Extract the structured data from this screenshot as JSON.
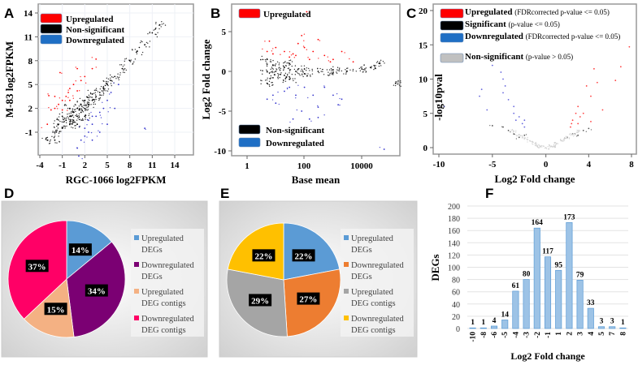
{
  "panels": {
    "a": "A",
    "b": "B",
    "c": "C",
    "d": "D",
    "e": "E",
    "f": "F"
  },
  "chart_data": [
    {
      "panel": "A",
      "type": "scatter",
      "xlabel": "RGC-1066 log2FPKM",
      "ylabel": "M-83 log2FPKM",
      "xlim": [
        -4.2,
        16.5
      ],
      "ylim": [
        -4.5,
        15
      ],
      "xticks": [
        -4,
        -1,
        2,
        5,
        8,
        11,
        14
      ],
      "yticks": [
        -1,
        2,
        5,
        8,
        11,
        14
      ],
      "grid": true,
      "legend_placement": "top-left",
      "series": [
        {
          "name": "Upregulated",
          "color": "#ff0000",
          "points": [
            [
              -3,
              0
            ],
            [
              -2.5,
              1.8
            ],
            [
              -2,
              2
            ],
            [
              -1.5,
              2.5
            ],
            [
              -1,
              3
            ],
            [
              -0.5,
              3.5
            ],
            [
              0,
              3
            ],
            [
              0,
              4.5
            ],
            [
              0.5,
              5
            ],
            [
              1,
              4.2
            ],
            [
              1.5,
              5.5
            ],
            [
              2,
              6
            ],
            [
              -2,
              3.5
            ],
            [
              -1.3,
              6.5
            ],
            [
              -0.2,
              4
            ],
            [
              1,
              7
            ],
            [
              3,
              7
            ],
            [
              3.5,
              8.2
            ],
            [
              -2.8,
              3.6
            ],
            [
              -1,
              1.8
            ]
          ]
        },
        {
          "name": "Non-significant",
          "color": "#000000",
          "points": [
            [
              -3,
              -2
            ],
            [
              -2,
              -1
            ],
            [
              -1.5,
              0
            ],
            [
              -1,
              -0.5
            ],
            [
              -1,
              1
            ],
            [
              -0.5,
              0.5
            ],
            [
              0,
              0
            ],
            [
              0,
              1
            ],
            [
              0,
              2
            ],
            [
              0.5,
              0.5
            ],
            [
              0.5,
              1.5
            ],
            [
              1,
              1
            ],
            [
              1,
              2
            ],
            [
              1.5,
              1.5
            ],
            [
              1.5,
              2.5
            ],
            [
              2,
              2
            ],
            [
              2,
              3
            ],
            [
              2.5,
              2.5
            ],
            [
              3,
              3
            ],
            [
              3,
              3.8
            ],
            [
              3.5,
              3.5
            ],
            [
              4,
              4
            ],
            [
              4.5,
              4.5
            ],
            [
              5,
              5
            ],
            [
              5.5,
              5.5
            ],
            [
              6,
              6
            ],
            [
              7,
              7
            ],
            [
              8,
              8
            ],
            [
              9,
              9.2
            ],
            [
              10,
              10
            ],
            [
              11,
              11.5
            ],
            [
              12,
              12.5
            ],
            [
              -2,
              -2
            ],
            [
              1,
              0
            ],
            [
              2,
              1
            ]
          ]
        },
        {
          "name": "Downregulated",
          "color": "#3333cc",
          "points": [
            [
              1,
              -3
            ],
            [
              1.5,
              -2
            ],
            [
              2,
              -1.5
            ],
            [
              2,
              -0.5
            ],
            [
              2.5,
              -1
            ],
            [
              3,
              0
            ],
            [
              3,
              -2
            ],
            [
              3.5,
              1
            ],
            [
              4,
              1.5
            ],
            [
              4.5,
              2
            ],
            [
              5,
              3
            ],
            [
              5.5,
              4
            ],
            [
              6,
              2
            ],
            [
              6.5,
              5
            ],
            [
              4,
              -1
            ],
            [
              3,
              1
            ],
            [
              2.5,
              0.5
            ],
            [
              1.2,
              -4
            ],
            [
              5,
              0
            ],
            [
              10,
              -0.5
            ]
          ]
        }
      ]
    },
    {
      "panel": "B",
      "type": "scatter",
      "xlabel": "Base mean",
      "ylabel": "Log2 Fold change",
      "xscale": "log",
      "xlim": [
        0.3,
        200000
      ],
      "ylim": [
        -10.5,
        8
      ],
      "xticks": [
        "1",
        "100",
        "10000"
      ],
      "yticks": [
        5,
        0,
        -5,
        -10
      ],
      "legend_placement": "top-left / bottom-left",
      "series": [
        {
          "name": "Upregulated",
          "color": "#ff0000",
          "points": [
            [
              5,
              2.5
            ],
            [
              8,
              2.2
            ],
            [
              10,
              3
            ],
            [
              20,
              2.5
            ],
            [
              30,
              1.8
            ],
            [
              50,
              2
            ],
            [
              80,
              4.5
            ],
            [
              100,
              3
            ],
            [
              150,
              1.5
            ],
            [
              200,
              2.5
            ],
            [
              300,
              4
            ],
            [
              500,
              2
            ],
            [
              1000,
              1.5
            ],
            [
              2000,
              2.5
            ],
            [
              120,
              7.5
            ],
            [
              60,
              3.5
            ],
            [
              40,
              2.2
            ],
            [
              800,
              1.2
            ],
            [
              5000,
              1.2
            ],
            [
              6,
              3.8
            ]
          ]
        },
        {
          "name": "Non-significant",
          "color": "#000000",
          "points": [
            [
              5,
              0
            ],
            [
              5,
              1.5
            ],
            [
              5,
              -1.5
            ],
            [
              8,
              0.8
            ],
            [
              8,
              -0.8
            ],
            [
              10,
              0
            ],
            [
              20,
              0.5
            ],
            [
              20,
              -0.5
            ],
            [
              50,
              0
            ],
            [
              100,
              0.3
            ],
            [
              100,
              -0.3
            ],
            [
              300,
              0
            ],
            [
              1000,
              0.2
            ],
            [
              1000,
              -0.2
            ],
            [
              3000,
              0
            ],
            [
              10000,
              0.3
            ],
            [
              20000,
              0.5
            ],
            [
              40000,
              1
            ],
            [
              150000,
              -1.5
            ],
            [
              30,
              1
            ],
            [
              30,
              -1
            ]
          ]
        },
        {
          "name": "Downregulated",
          "color": "#3333cc",
          "points": [
            [
              5,
              -3.5
            ],
            [
              8,
              -3
            ],
            [
              10,
              -4
            ],
            [
              20,
              -2.5
            ],
            [
              30,
              -2
            ],
            [
              50,
              -3
            ],
            [
              80,
              -5
            ],
            [
              100,
              -2
            ],
            [
              150,
              -6
            ],
            [
              200,
              -3
            ],
            [
              300,
              -4.5
            ],
            [
              500,
              -2
            ],
            [
              1000,
              -3
            ],
            [
              2000,
              -3.5
            ],
            [
              60000,
              -9.8
            ],
            [
              40,
              -6
            ],
            [
              300,
              -5.8
            ],
            [
              1500,
              -4.2
            ]
          ]
        }
      ]
    },
    {
      "panel": "C",
      "type": "scatter",
      "xlabel": "Log2 Fold change",
      "ylabel": "-log10pval",
      "xlim": [
        -10.5,
        8.3
      ],
      "ylim": [
        -0.8,
        20.5
      ],
      "xticks": [
        -10,
        -5,
        0,
        4,
        8
      ],
      "yticks": [
        20,
        15,
        10,
        5,
        0
      ],
      "legend_placement": "top",
      "legend": [
        {
          "name": "Upregulated",
          "note": "(FDRcorrected p-value <= 0.05)",
          "color": "#ff0000"
        },
        {
          "name": "Significant",
          "note": "(p-value <= 0.05)",
          "color": "#000000"
        },
        {
          "name": "Downregulated",
          "note": "(FDRcorrected p-value <= 0.05)",
          "color": "#1f6fc5"
        },
        {
          "name": "Non-significant",
          "note": "(p-value > 0.05)",
          "color": "#c0c0c0"
        }
      ],
      "series": [
        {
          "name": "Upregulated",
          "color": "#ff4040",
          "points": [
            [
              2.3,
              3
            ],
            [
              2.5,
              4
            ],
            [
              2.8,
              5
            ],
            [
              3,
              3.5
            ],
            [
              3,
              6
            ],
            [
              3.2,
              4.5
            ],
            [
              3.5,
              5
            ],
            [
              3.8,
              9
            ],
            [
              4.2,
              7.5
            ],
            [
              4.5,
              11.5
            ],
            [
              4.8,
              9.5
            ],
            [
              6.5,
              9.8
            ],
            [
              7,
              11.8
            ],
            [
              7.8,
              14.7
            ],
            [
              5.3,
              5.5
            ],
            [
              4.2,
              3.8
            ],
            [
              2.4,
              3.5
            ]
          ]
        },
        {
          "name": "Significant",
          "color": "#555555",
          "points": [
            [
              -3,
              2
            ],
            [
              -2.5,
              1.5
            ],
            [
              -2,
              1.8
            ],
            [
              -3.5,
              2.5
            ],
            [
              2,
              1.5
            ],
            [
              2.5,
              2
            ],
            [
              3,
              1.8
            ],
            [
              3.5,
              2.5
            ],
            [
              4,
              2.8
            ],
            [
              -4,
              3
            ],
            [
              -5,
              3.2
            ]
          ]
        },
        {
          "name": "Downregulated",
          "color": "#6666dd",
          "points": [
            [
              -2,
              3
            ],
            [
              -2,
              4
            ],
            [
              -2.2,
              3.5
            ],
            [
              -2.5,
              4.5
            ],
            [
              -3,
              5
            ],
            [
              -3,
              6
            ],
            [
              -3.5,
              7
            ],
            [
              -4,
              8
            ],
            [
              -4,
              10
            ],
            [
              -4.2,
              11
            ],
            [
              -5,
              12
            ],
            [
              -5.5,
              5.5
            ],
            [
              -6,
              8.5
            ],
            [
              -6.2,
              7.5
            ],
            [
              -9.5,
              6
            ],
            [
              -3.8,
              9
            ],
            [
              -2.8,
              4
            ]
          ]
        },
        {
          "name": "Non-significant",
          "color": "#cfcfcf",
          "points": [
            [
              0,
              0
            ],
            [
              -0.5,
              0.2
            ],
            [
              0.5,
              0.2
            ],
            [
              -1,
              0.6
            ],
            [
              1,
              0.6
            ],
            [
              -1.5,
              1
            ],
            [
              1.5,
              1
            ],
            [
              -2,
              1.4
            ],
            [
              2,
              1.4
            ],
            [
              -2.5,
              1.9
            ],
            [
              2.5,
              1.9
            ],
            [
              -3,
              2.4
            ],
            [
              3,
              2.4
            ],
            [
              -0.8,
              0.2
            ],
            [
              0.8,
              0.2
            ]
          ]
        }
      ]
    },
    {
      "panel": "D",
      "type": "pie",
      "labels": [
        "Upregulated DEGs",
        "Downregulated DEGs",
        "Upregulated DEG contigs",
        "Downregulated DEG contigs"
      ],
      "legend_lines": [
        [
          "Upregulated",
          "DEGs"
        ],
        [
          "Downregulated",
          "DEGs"
        ],
        [
          "Upregulated",
          "DEG contigs"
        ],
        [
          "Downregulated",
          "DEG contigs"
        ]
      ],
      "values": [
        14,
        34,
        15,
        37
      ],
      "data_labels": [
        "14%",
        "34%",
        "15%",
        "37%"
      ],
      "colors": [
        "#5b9bd5",
        "#7b0073",
        "#f4b183",
        "#ff0066"
      ],
      "legend_placement": "right"
    },
    {
      "panel": "E",
      "type": "pie",
      "labels": [
        "Upregulated DEGs",
        "Downregulated DEGs",
        "Upregulated DEG contigs",
        "Downregulated DEG contigs"
      ],
      "legend_lines": [
        [
          "Upregulated",
          "DEGs"
        ],
        [
          "Downregulated",
          "DEGs"
        ],
        [
          "Upregulated",
          "DEG contigs"
        ],
        [
          "Downregulated",
          "DEG contigs"
        ]
      ],
      "values": [
        22,
        27,
        29,
        22
      ],
      "data_labels": [
        "22%",
        "27%",
        "29%",
        "22%"
      ],
      "colors": [
        "#5b9bd5",
        "#ed7d31",
        "#a5a5a5",
        "#ffc000"
      ],
      "legend_placement": "right"
    },
    {
      "panel": "F",
      "type": "bar",
      "xlabel": "Log2 Fold change",
      "ylabel": "DEGs",
      "categories": [
        "-10",
        "-8",
        "-6",
        "-5",
        "-4",
        "-3",
        "-2",
        "-1",
        "1",
        "2",
        "3",
        "4",
        "5",
        "7",
        "8"
      ],
      "values": [
        1,
        1,
        4,
        14,
        61,
        80,
        164,
        117,
        95,
        173,
        79,
        33,
        3,
        3,
        1
      ],
      "ylim": [
        0,
        200
      ],
      "yticks": [
        0,
        20,
        40,
        60,
        80,
        100,
        120,
        140,
        160,
        180,
        200
      ],
      "grid": true,
      "color": "#9dc3e6"
    }
  ]
}
